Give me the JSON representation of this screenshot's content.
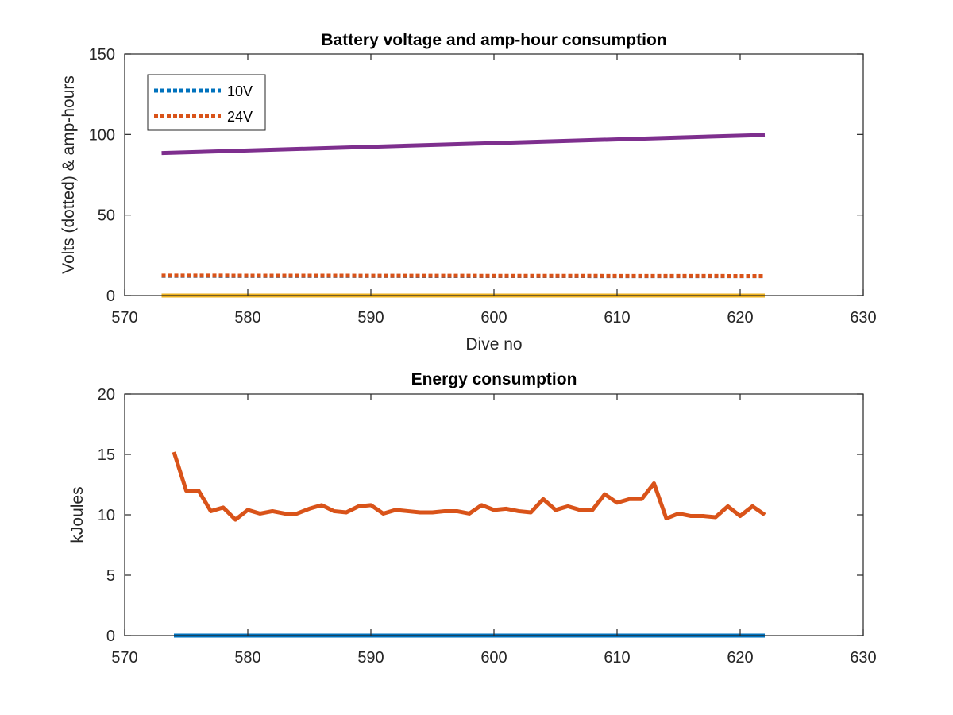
{
  "chart_data": [
    {
      "type": "line",
      "title": "Battery voltage and amp-hour consumption",
      "xlabel": "Dive no",
      "ylabel": "Volts (dotted) & amp-hours",
      "xlim": [
        570,
        630
      ],
      "ylim": [
        0,
        150
      ],
      "xticks": [
        "570",
        "580",
        "590",
        "600",
        "610",
        "620",
        "630"
      ],
      "yticks": [
        "0",
        "50",
        "100",
        "150"
      ],
      "legend": {
        "placement": "top-left",
        "entries": [
          "10V",
          "24V"
        ]
      },
      "series": [
        {
          "name": "10V",
          "color": "#0072BD",
          "style": "dotted",
          "x": [
            573,
            622
          ],
          "y": [
            12.2,
            12.0
          ]
        },
        {
          "name": "24V",
          "color": "#D95319",
          "style": "dotted",
          "x": [
            573,
            622
          ],
          "y": [
            12.4,
            12.1
          ]
        },
        {
          "color": "#EDB120",
          "style": "solid",
          "x": [
            573,
            622
          ],
          "y": [
            0,
            0
          ]
        },
        {
          "color": "#7E2F8E",
          "style": "solid",
          "x": [
            573,
            622
          ],
          "y": [
            88.5,
            99.7
          ]
        }
      ]
    },
    {
      "type": "line",
      "title": "Energy consumption",
      "xlabel": "",
      "ylabel": "kJoules",
      "xlim": [
        570,
        630
      ],
      "ylim": [
        0,
        20
      ],
      "xticks": [
        "570",
        "580",
        "590",
        "600",
        "610",
        "620",
        "630"
      ],
      "yticks": [
        "0",
        "5",
        "10",
        "15",
        "20"
      ],
      "series": [
        {
          "color": "#0072BD",
          "style": "solid",
          "x": [
            574,
            622
          ],
          "y": [
            0,
            0
          ]
        },
        {
          "color": "#D95319",
          "style": "solid",
          "x": [
            574,
            575,
            576,
            577,
            578,
            579,
            580,
            581,
            582,
            583,
            584,
            585,
            586,
            587,
            588,
            589,
            590,
            591,
            592,
            593,
            594,
            595,
            596,
            597,
            598,
            599,
            600,
            601,
            602,
            603,
            604,
            605,
            606,
            607,
            608,
            609,
            610,
            611,
            612,
            613,
            614,
            615,
            616,
            617,
            618,
            619,
            620,
            621,
            622
          ],
          "y": [
            15.2,
            12.0,
            12.0,
            10.3,
            10.6,
            9.6,
            10.4,
            10.1,
            10.3,
            10.1,
            10.1,
            10.5,
            10.8,
            10.3,
            10.2,
            10.7,
            10.8,
            10.1,
            10.4,
            10.3,
            10.2,
            10.2,
            10.3,
            10.3,
            10.1,
            10.8,
            10.4,
            10.5,
            10.3,
            10.2,
            11.3,
            10.4,
            10.7,
            10.4,
            10.4,
            11.7,
            11.0,
            11.3,
            11.3,
            12.6,
            9.7,
            10.1,
            9.9,
            9.9,
            9.8,
            10.7,
            9.9,
            10.7,
            10.0
          ]
        }
      ]
    }
  ]
}
